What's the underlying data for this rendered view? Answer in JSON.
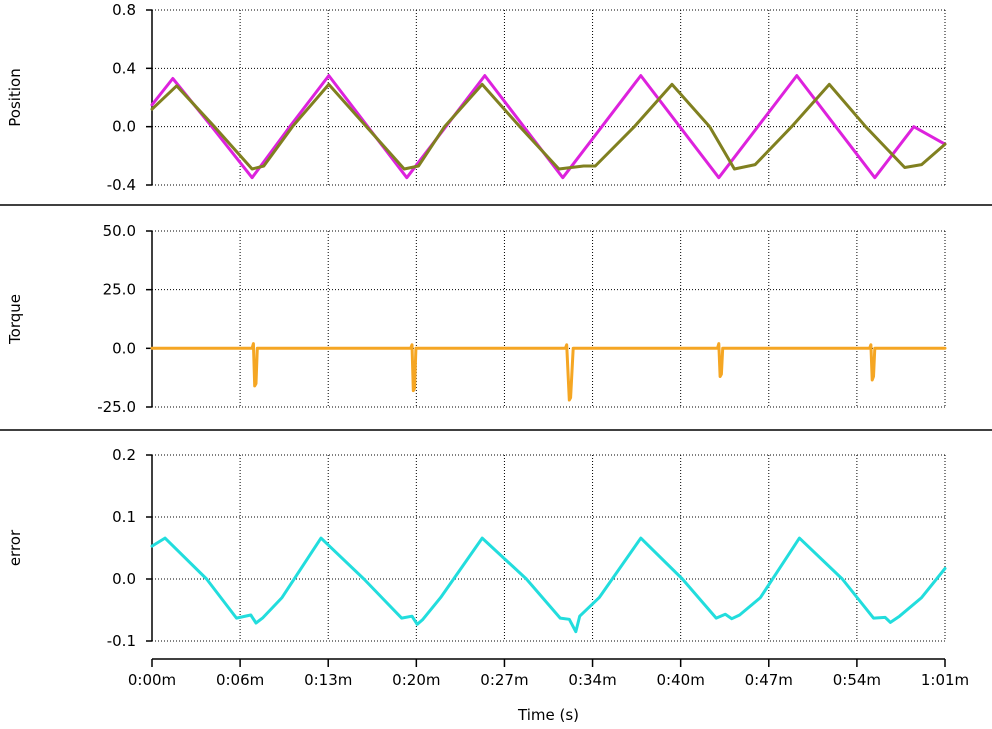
{
  "chart_data": [
    {
      "type": "line",
      "ylabel": "Position",
      "ylim": [
        -0.4,
        0.8
      ],
      "yticks": [
        "0.8",
        "0.4",
        "0.0",
        "-0.4"
      ],
      "ytick_values": [
        0.8,
        0.4,
        0.0,
        -0.4
      ],
      "grid": true,
      "series": [
        {
          "color": "#dd22dd",
          "x": [
            0.0,
            1.6,
            4.6,
            7.7,
            10.6,
            13.6,
            16.6,
            19.6,
            22.6,
            25.6,
            28.6,
            31.6,
            34.6,
            37.6,
            40.6,
            43.6,
            46.6,
            49.6,
            52.6,
            55.6,
            58.6,
            61.0
          ],
          "y": [
            0.15,
            0.33,
            0.0,
            -0.35,
            0.0,
            0.35,
            0.0,
            -0.35,
            0.0,
            0.35,
            0.0,
            -0.35,
            0.0,
            0.35,
            0.0,
            -0.35,
            0.0,
            0.35,
            0.0,
            -0.35,
            0.0,
            -0.12
          ]
        },
        {
          "color": "#808020",
          "x": [
            0.0,
            1.9,
            4.8,
            7.7,
            8.6,
            10.8,
            13.6,
            16.5,
            19.4,
            20.5,
            22.5,
            25.4,
            28.3,
            31.3,
            33.2,
            34.1,
            37.1,
            40.0,
            42.9,
            44.8,
            46.4,
            49.2,
            52.1,
            54.9,
            57.9,
            59.2,
            61.0
          ],
          "y": [
            0.12,
            0.28,
            0.0,
            -0.29,
            -0.27,
            0.0,
            0.29,
            0.0,
            -0.29,
            -0.27,
            0.0,
            0.29,
            0.0,
            -0.29,
            -0.27,
            -0.27,
            0.0,
            0.29,
            0.0,
            -0.29,
            -0.26,
            0.0,
            0.29,
            0.0,
            -0.28,
            -0.26,
            -0.12
          ]
        }
      ]
    },
    {
      "type": "line",
      "ylabel": "Torque",
      "ylim": [
        -25.0,
        50.0
      ],
      "yticks": [
        "50.0",
        "25.0",
        "0.0",
        "-25.0"
      ],
      "ytick_values": [
        50.0,
        25.0,
        0.0,
        -25.0
      ],
      "grid": true,
      "series": [
        {
          "color": "#f5a623",
          "x": [
            0.0,
            7.7,
            7.8,
            7.9,
            8.0,
            8.1,
            19.9,
            20.0,
            20.1,
            20.2,
            20.3,
            31.8,
            31.9,
            32.1,
            32.2,
            32.4,
            43.5,
            43.6,
            43.7,
            43.8,
            43.9,
            55.2,
            55.3,
            55.4,
            55.5,
            55.6,
            61.0
          ],
          "y": [
            0.0,
            0.0,
            2.0,
            -16.0,
            -15.0,
            0.0,
            0.0,
            1.5,
            -18.0,
            -17.0,
            0.0,
            0.0,
            1.5,
            -22.0,
            -21.0,
            0.0,
            0.0,
            2.0,
            -12.0,
            -11.0,
            0.0,
            0.0,
            1.5,
            -13.5,
            -12.0,
            0.0,
            0.0
          ]
        }
      ]
    },
    {
      "type": "line",
      "ylabel": "error",
      "xlabel": "Time (s)",
      "ylim": [
        -0.1,
        0.2
      ],
      "yticks": [
        "0.2",
        "0.1",
        "0.0",
        "-0.1"
      ],
      "ytick_values": [
        0.2,
        0.1,
        0.0,
        -0.1
      ],
      "xlim": [
        "0:00m",
        "1:01m"
      ],
      "xticks": [
        "0:00m",
        "0:06m",
        "0:13m",
        "0:20m",
        "0:27m",
        "0:34m",
        "0:40m",
        "0:47m",
        "0:54m",
        "1:01m"
      ],
      "grid": true,
      "series": [
        {
          "color": "#22dddd",
          "x": [
            0.0,
            1.0,
            4.2,
            6.5,
            7.6,
            8.0,
            8.5,
            10.0,
            13.0,
            16.3,
            19.2,
            20.0,
            20.4,
            20.8,
            22.2,
            25.4,
            28.8,
            31.4,
            32.1,
            32.6,
            32.9,
            34.4,
            37.6,
            40.8,
            43.4,
            44.1,
            44.6,
            45.2,
            46.8,
            49.8,
            53.1,
            55.5,
            56.4,
            56.8,
            57.5,
            59.2,
            61.0
          ],
          "y": [
            0.053,
            0.066,
            0.0,
            -0.063,
            -0.058,
            -0.071,
            -0.063,
            -0.03,
            0.066,
            0.0,
            -0.063,
            -0.06,
            -0.073,
            -0.066,
            -0.03,
            0.066,
            0.0,
            -0.063,
            -0.065,
            -0.085,
            -0.06,
            -0.03,
            0.066,
            0.0,
            -0.063,
            -0.057,
            -0.064,
            -0.058,
            -0.03,
            0.066,
            0.0,
            -0.063,
            -0.062,
            -0.07,
            -0.06,
            -0.03,
            0.017
          ]
        }
      ]
    }
  ]
}
